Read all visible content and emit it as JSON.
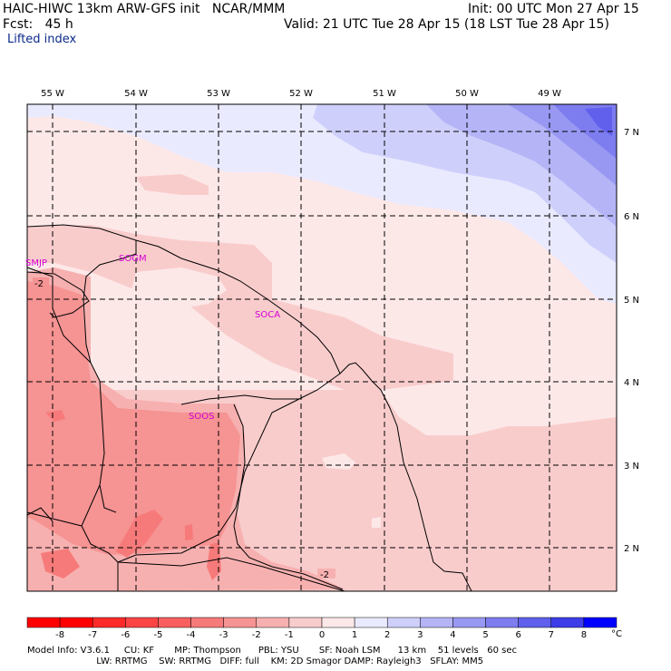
{
  "header": {
    "model_line": "HAIC-HIWC 13km ARW-GFS init   NCAR/MMM",
    "init_line": "Init: 00 UTC Mon 27 Apr 15",
    "fcst_line": "Fcst:   45 h",
    "valid_line": "Valid: 21 UTC Tue 28 Apr 15 (18 LST Tue 28 Apr 15)",
    "field_name": "Lifted index"
  },
  "map": {
    "lon_labels": [
      "55 W",
      "54 W",
      "53 W",
      "52 W",
      "51 W",
      "50 W",
      "49 W"
    ],
    "lat_labels": [
      "7 N",
      "6 N",
      "5 N",
      "4 N",
      "3 N",
      "2 N"
    ],
    "stations": [
      "SMJP",
      "SOGM",
      "SOCA",
      "SOOS"
    ],
    "contour_labels": [
      "-2",
      "-2"
    ]
  },
  "colorbar": {
    "ticks": [
      "-8",
      "-7",
      "-6",
      "-5",
      "-4",
      "-3",
      "-2",
      "-1",
      "0",
      "1",
      "2",
      "3",
      "4",
      "5",
      "6",
      "7",
      "8"
    ],
    "unit": "°C",
    "colors": [
      "#ff0000",
      "#fd2a2a",
      "#fb4545",
      "#f95f5f",
      "#f77a7a",
      "#f69393",
      "#f7b0b0",
      "#f9cccc",
      "#fde8e8",
      "#eaeaff",
      "#cfcffb",
      "#b4b4f7",
      "#9898f3",
      "#7d7df0",
      "#6060ec",
      "#3d3de9",
      "#0000ff"
    ]
  },
  "footer": {
    "line1": "Model Info: V3.6.1     CU: KF       MP: Thompson      PBL: YSU       SF: Noah LSM      13 km    51 levels   60 sec",
    "line2": "                        LW: RRTMG    SW: RRTMG   DIFF: full    KM: 2D Smagor DAMP: Rayleigh3   SFLAY: MM5"
  }
}
